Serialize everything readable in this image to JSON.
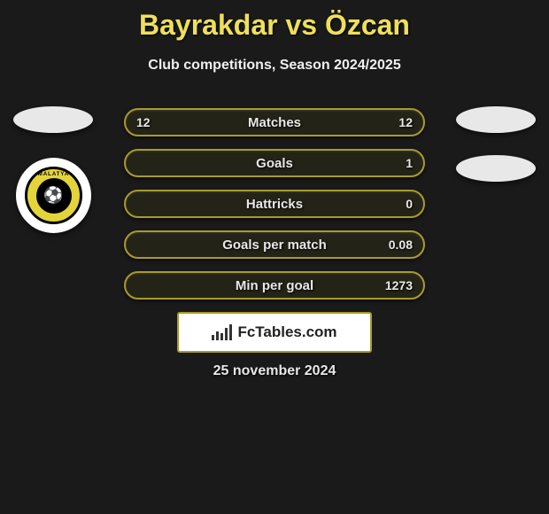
{
  "title": "Bayrakdar vs Özcan",
  "subtitle": "Club competitions, Season 2024/2025",
  "date": "25 november 2024",
  "logo_text": "FcTables.com",
  "club_left_name": "MALATYA",
  "colors": {
    "background": "#1a1a1a",
    "accent": "#efe05a",
    "bar_border": "#a99a2d",
    "text": "#e8e8e8",
    "crest_yellow": "#e3d43a",
    "white": "#ffffff"
  },
  "bars": [
    {
      "label": "Matches",
      "left": "12",
      "right": "12"
    },
    {
      "label": "Goals",
      "left": "",
      "right": "1"
    },
    {
      "label": "Hattricks",
      "left": "",
      "right": "0"
    },
    {
      "label": "Goals per match",
      "left": "",
      "right": "0.08"
    },
    {
      "label": "Min per goal",
      "left": "",
      "right": "1273"
    }
  ]
}
